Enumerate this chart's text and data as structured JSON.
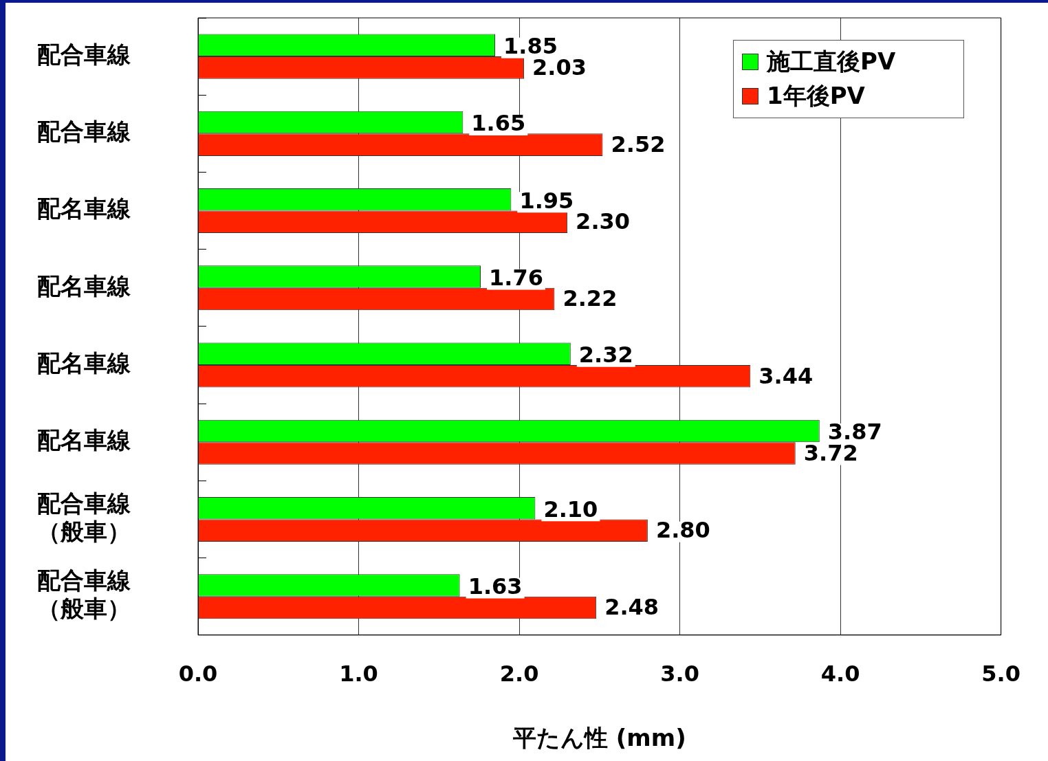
{
  "chart_data": {
    "type": "bar",
    "orientation": "horizontal",
    "xlabel": "平たん性 (mm)",
    "categories": [
      "配合車線",
      "配合車線",
      "配名車線",
      "配名車線",
      "配名車線",
      "配名車線",
      "配合車線（般車）",
      "配合車線（般車）"
    ],
    "series": [
      {
        "name": "施工直後PV",
        "color": "#00ff00",
        "values": [
          1.85,
          1.65,
          1.95,
          1.76,
          2.32,
          3.87,
          2.1,
          1.63
        ],
        "value_labels": [
          "1.85",
          "1.65",
          "1.95",
          "1.76",
          "2.32",
          "3.87",
          "2.10",
          "1.63"
        ]
      },
      {
        "name": "1年後PV",
        "color": "#ff2200",
        "values": [
          2.03,
          2.52,
          2.3,
          2.22,
          3.44,
          3.72,
          2.8,
          2.48
        ],
        "value_labels": [
          "2.03",
          "2.52",
          "2.30",
          "2.22",
          "3.44",
          "3.72",
          "2.80",
          "2.48"
        ]
      }
    ],
    "xlim": [
      0,
      5
    ],
    "xticks": [
      {
        "value": 0,
        "label": "0.0"
      },
      {
        "value": 1,
        "label": "1.0"
      },
      {
        "value": 2,
        "label": "2.0"
      },
      {
        "value": 3,
        "label": "3.0"
      },
      {
        "value": 4,
        "label": "4.0"
      },
      {
        "value": 5,
        "label": "5.0"
      }
    ],
    "grid": "x",
    "legend": "top right"
  }
}
